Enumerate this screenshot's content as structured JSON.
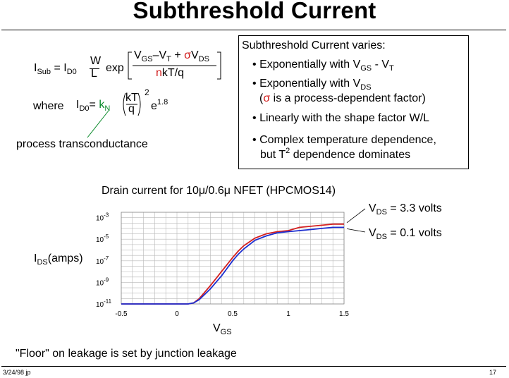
{
  "slide": {
    "title": "Subthreshold Current",
    "date": "3/24/98 jp",
    "page": "17"
  },
  "equation": {
    "lhs_sym": "I",
    "lhs_sub": "Sub",
    "eq": "=",
    "i_sym": "I",
    "i_sub": "D0",
    "w": "W",
    "l": "L",
    "exp": "exp",
    "num_v": "V",
    "num_v_sub": "GS",
    "num_minus": "–V",
    "num_t_sub": "T",
    "num_plus": " + ",
    "sigma": "σ",
    "num_vds": "V",
    "num_vds_sub": "DS",
    "den_n": "n",
    "den_rest": "kT/q",
    "where": "where",
    "id0": "I",
    "id0_sub": "D0",
    "id0_eq": "=",
    "kn": "k",
    "kn_sub": "N",
    "kt": "kT",
    "q": "q",
    "sq": "2",
    "e": "e",
    "e_exp": "1.8",
    "callout": "process transconductance"
  },
  "varies": {
    "heading": "Subthreshold Current varies:",
    "bullet": "•",
    "b1_text": "Exponentially with V",
    "b1_sub1": "GS",
    "b1_mid": " - V",
    "b1_sub2": "T",
    "b2_text": "Exponentially with V",
    "b2_sub": "DS",
    "b2_paren_open": "(",
    "b2_sigma": "σ",
    "b2_rest": " is a process-dependent factor)",
    "b3": "Linearly with the shape factor W/L",
    "b4_line1": "Complex temperature dependence,",
    "b4_line2a": "but T",
    "b4_sup": "2",
    "b4_line2b": " dependence dominates"
  },
  "chart_data": {
    "type": "line",
    "title": "Drain current for 10μ/0.6μ NFET (HPCMOS14)",
    "xlabel": "V",
    "xlabel_sub": "GS",
    "ylabel": "I",
    "ylabel_sub": "DS",
    "ylabel_unit": "(amps)",
    "xlim": [
      -0.5,
      1.5
    ],
    "ylim_log10": [
      -11,
      -2.5
    ],
    "x_ticks": [
      "-0.5",
      "0",
      "0.5",
      "1",
      "1.5"
    ],
    "y_ticks": [
      {
        "base": "10",
        "exp": "-3"
      },
      {
        "base": "10",
        "exp": "-5"
      },
      {
        "base": "10",
        "exp": "-7"
      },
      {
        "base": "10",
        "exp": "-9"
      },
      {
        "base": "10",
        "exp": "-11"
      }
    ],
    "series": [
      {
        "name": "V_DS = 3.3 volts",
        "color": "#d42020",
        "x": [
          -0.5,
          0.0,
          0.1,
          0.15,
          0.2,
          0.3,
          0.4,
          0.5,
          0.55,
          0.6,
          0.7,
          0.8,
          0.9,
          1.0,
          1.1,
          1.2,
          1.3,
          1.4,
          1.5
        ],
        "log10_y": [
          -11,
          -11,
          -11,
          -10.9,
          -10.5,
          -9.3,
          -8.0,
          -6.7,
          -6.1,
          -5.6,
          -4.9,
          -4.5,
          -4.3,
          -4.2,
          -3.9,
          -3.8,
          -3.7,
          -3.6,
          -3.6
        ]
      },
      {
        "name": "V_DS = 0.1 volts",
        "color": "#1c2ed0",
        "x": [
          -0.5,
          0.0,
          0.1,
          0.15,
          0.2,
          0.3,
          0.4,
          0.5,
          0.55,
          0.6,
          0.7,
          0.8,
          0.9,
          1.0,
          1.1,
          1.2,
          1.3,
          1.4,
          1.5
        ],
        "log10_y": [
          -11,
          -11,
          -11,
          -10.9,
          -10.6,
          -9.6,
          -8.4,
          -7.0,
          -6.4,
          -5.9,
          -5.1,
          -4.7,
          -4.4,
          -4.3,
          -4.2,
          -4.1,
          -4.0,
          -3.9,
          -3.9
        ]
      }
    ],
    "labels": [
      {
        "v": "V",
        "sub": "DS",
        "rest": " = 3.3 volts"
      },
      {
        "v": "V",
        "sub": "DS",
        "rest": " = 0.1 volts"
      }
    ],
    "grid": true
  },
  "floor_note": "\"Floor\" on leakage is set by junction leakage"
}
